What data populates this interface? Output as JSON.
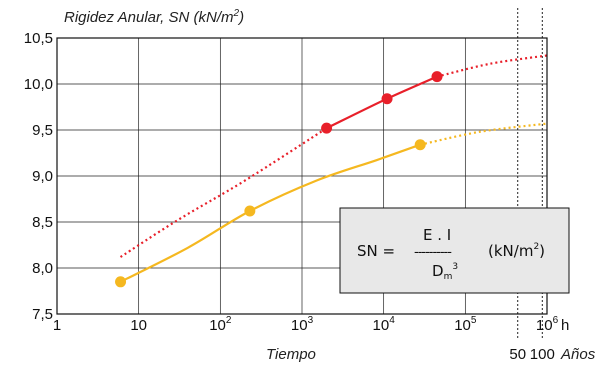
{
  "chart_data": {
    "type": "line",
    "title": "",
    "ylabel_text": "Rigidez Anular, SN (kN/m",
    "ylabel_sup": "2",
    "ylabel_close": ")",
    "xlabel": "Tiempo",
    "x_unit": "h",
    "ylim": [
      7.5,
      10.5
    ],
    "yticks": [
      "7,5",
      "8,0",
      "8,5",
      "9,0",
      "9,5",
      "10,0",
      "10,5"
    ],
    "ytick_values": [
      7.5,
      8.0,
      8.5,
      9.0,
      9.5,
      10.0,
      10.5
    ],
    "x_scale": "log",
    "xlim_hours": [
      1,
      1000000
    ],
    "xticks": [
      {
        "base": "1",
        "exp": ""
      },
      {
        "base": "10",
        "exp": ""
      },
      {
        "base": "10",
        "exp": "2"
      },
      {
        "base": "10",
        "exp": "3"
      },
      {
        "base": "10",
        "exp": "4"
      },
      {
        "base": "10",
        "exp": "5"
      },
      {
        "base": "10",
        "exp": "6"
      }
    ],
    "xtick_values": [
      1,
      10,
      100,
      1000,
      10000,
      100000,
      1000000
    ],
    "secondary_axis": {
      "label": "Años",
      "ticks": [
        {
          "label": "50",
          "hours": 438000
        },
        {
          "label": "100",
          "hours": 876000
        }
      ]
    },
    "grid": true,
    "series": [
      {
        "color": "#e8202a",
        "markers": [
          {
            "x": 2000,
            "y": 9.52
          },
          {
            "x": 11000,
            "y": 9.84
          },
          {
            "x": 45000,
            "y": 10.08
          }
        ],
        "measured_range": [
          2000,
          50000
        ],
        "extrapolated_back": [
          [
            6,
            8.12
          ],
          [
            30,
            8.52
          ],
          [
            200,
            8.95
          ],
          [
            2000,
            9.52
          ]
        ],
        "measured": [
          [
            2000,
            9.52
          ],
          [
            11000,
            9.84
          ],
          [
            45000,
            10.08
          ]
        ],
        "extrapolated_forward": [
          [
            45000,
            10.08
          ],
          [
            200000,
            10.22
          ],
          [
            1000000,
            10.31
          ]
        ]
      },
      {
        "color": "#f5b820",
        "markers": [
          {
            "x": 6,
            "y": 7.85
          },
          {
            "x": 230,
            "y": 8.62
          },
          {
            "x": 28000,
            "y": 9.34
          }
        ],
        "measured": [
          [
            6,
            7.85
          ],
          [
            40,
            8.22
          ],
          [
            230,
            8.62
          ],
          [
            1500,
            8.95
          ],
          [
            8000,
            9.17
          ],
          [
            28000,
            9.34
          ]
        ],
        "extrapolated_forward": [
          [
            28000,
            9.34
          ],
          [
            150000,
            9.48
          ],
          [
            1000000,
            9.57
          ]
        ]
      }
    ],
    "annotation": {
      "lhs": "SN =",
      "numerator": "E . I",
      "divider": "----------",
      "denominator_base": "D",
      "denominator_sub": "m",
      "denominator_sup": "3",
      "unit_open": "(kN/m",
      "unit_sup": "2",
      "unit_close": ")"
    }
  }
}
